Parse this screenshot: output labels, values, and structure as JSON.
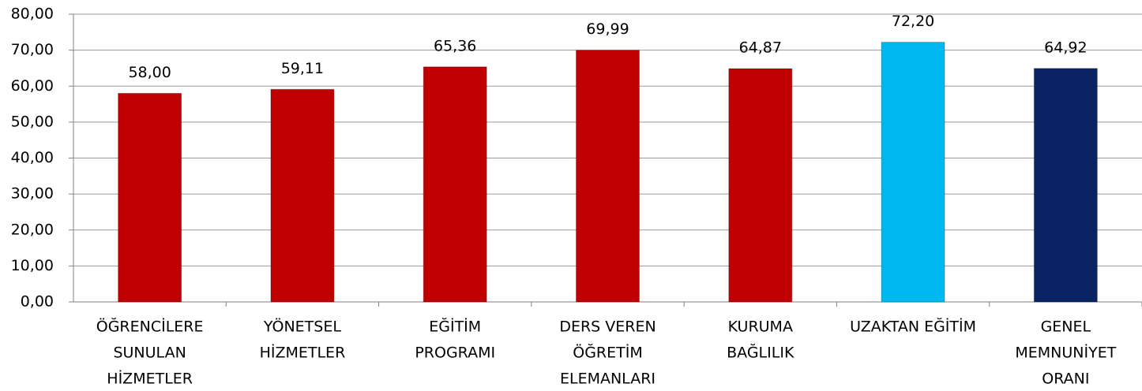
{
  "chart_data": {
    "type": "bar",
    "categories": [
      [
        "ÖĞRENCİLERE",
        "SUNULAN",
        "HİZMETLER"
      ],
      [
        "YÖNETSEL",
        "HİZMETLER"
      ],
      [
        "EĞİTİM",
        "PROGRAMI"
      ],
      [
        "DERS VEREN",
        "ÖĞRETİM",
        "ELEMANLARI"
      ],
      [
        "KURUMA",
        "BAĞLILIK"
      ],
      [
        "UZAKTAN EĞİTİM"
      ],
      [
        "GENEL",
        "MEMNUNİYET",
        "ORANI"
      ]
    ],
    "values": [
      58,
      59.11,
      65.36,
      69.99,
      64.87,
      72.2,
      64.92
    ],
    "value_labels": [
      "58,00",
      "59,11",
      "65,36",
      "69,99",
      "64,87",
      "72,20",
      "64,92"
    ],
    "colors": [
      "#c00000",
      "#c00000",
      "#c00000",
      "#c00000",
      "#c00000",
      "#00b8f0",
      "#0a2463"
    ],
    "ylim": [
      0,
      80
    ],
    "yticks": [
      {
        "value": 0,
        "label": "0,00"
      },
      {
        "value": 10,
        "label": "10,00"
      },
      {
        "value": 20,
        "label": "20,00"
      },
      {
        "value": 30,
        "label": "30,00"
      },
      {
        "value": 40,
        "label": "40,00"
      },
      {
        "value": 50,
        "label": "50,00"
      },
      {
        "value": 60,
        "label": "60,00"
      },
      {
        "value": 70,
        "label": "70,00"
      },
      {
        "value": 80,
        "label": "80,00"
      }
    ],
    "grid": true
  }
}
